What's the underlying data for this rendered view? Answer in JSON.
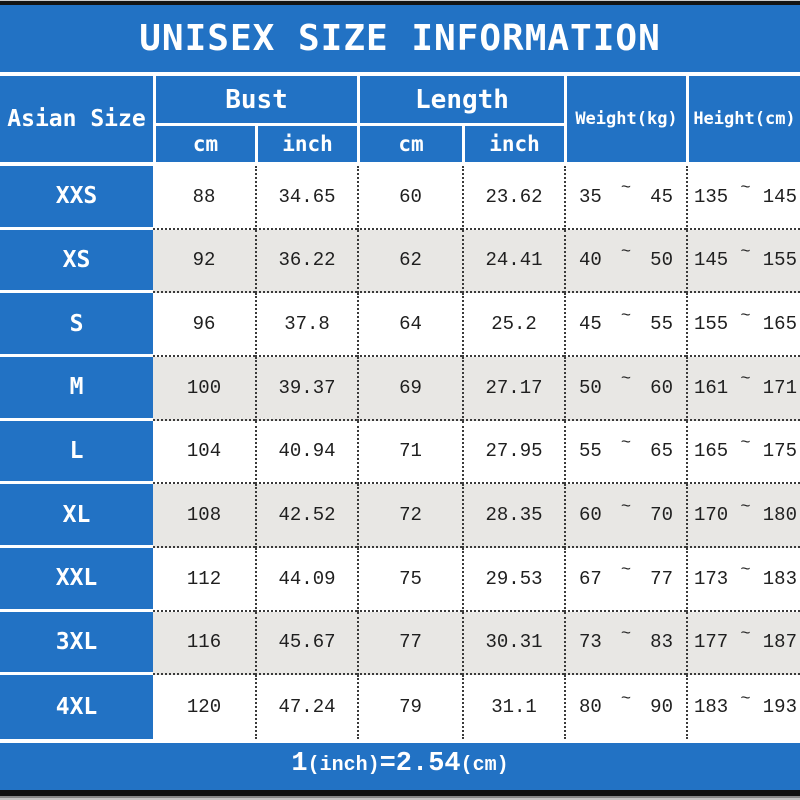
{
  "title": "UNISEX SIZE INFORMATION",
  "colors": {
    "blue": "#2272c4",
    "row_alt": "#e8e7e4",
    "dotted_line": "#3a3a3a"
  },
  "table": {
    "size_column_header": "Asian Size",
    "bust_header": "Bust",
    "length_header": "Length",
    "weight_header": "Weight(kg)",
    "height_header": "Height(cm)",
    "unit_cm": "cm",
    "unit_inch": "inch",
    "tilde": "~",
    "rows": [
      {
        "size": "XXS",
        "bust_cm": "88",
        "bust_inch": "34.65",
        "length_cm": "60",
        "length_inch": "23.62",
        "weight_min": "35",
        "weight_max": "45",
        "height_min": "135",
        "height_max": "145"
      },
      {
        "size": "XS",
        "bust_cm": "92",
        "bust_inch": "36.22",
        "length_cm": "62",
        "length_inch": "24.41",
        "weight_min": "40",
        "weight_max": "50",
        "height_min": "145",
        "height_max": "155"
      },
      {
        "size": "S",
        "bust_cm": "96",
        "bust_inch": "37.8",
        "length_cm": "64",
        "length_inch": "25.2",
        "weight_min": "45",
        "weight_max": "55",
        "height_min": "155",
        "height_max": "165"
      },
      {
        "size": "M",
        "bust_cm": "100",
        "bust_inch": "39.37",
        "length_cm": "69",
        "length_inch": "27.17",
        "weight_min": "50",
        "weight_max": "60",
        "height_min": "161",
        "height_max": "171"
      },
      {
        "size": "L",
        "bust_cm": "104",
        "bust_inch": "40.94",
        "length_cm": "71",
        "length_inch": "27.95",
        "weight_min": "55",
        "weight_max": "65",
        "height_min": "165",
        "height_max": "175"
      },
      {
        "size": "XL",
        "bust_cm": "108",
        "bust_inch": "42.52",
        "length_cm": "72",
        "length_inch": "28.35",
        "weight_min": "60",
        "weight_max": "70",
        "height_min": "170",
        "height_max": "180"
      },
      {
        "size": "XXL",
        "bust_cm": "112",
        "bust_inch": "44.09",
        "length_cm": "75",
        "length_inch": "29.53",
        "weight_min": "67",
        "weight_max": "77",
        "height_min": "173",
        "height_max": "183"
      },
      {
        "size": "3XL",
        "bust_cm": "116",
        "bust_inch": "45.67",
        "length_cm": "77",
        "length_inch": "30.31",
        "weight_min": "73",
        "weight_max": "83",
        "height_min": "177",
        "height_max": "187"
      },
      {
        "size": "4XL",
        "bust_cm": "120",
        "bust_inch": "47.24",
        "length_cm": "79",
        "length_inch": "31.1",
        "weight_min": "80",
        "weight_max": "90",
        "height_min": "183",
        "height_max": "193"
      }
    ]
  },
  "footer": {
    "num1": "1",
    "unit1": "(inch)",
    "num2": "=2.54",
    "unit2": "(cm)"
  }
}
